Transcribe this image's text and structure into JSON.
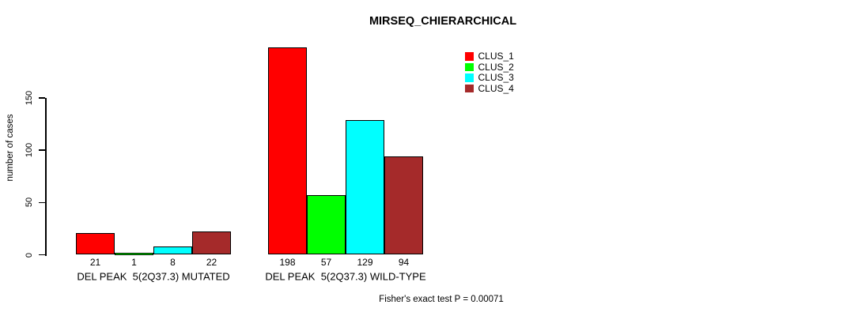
{
  "chart_data": {
    "type": "bar",
    "title": "MIRSEQ_CHIERARCHICAL",
    "ylabel": "number of cases",
    "xlabel": "",
    "categories": [
      "DEL PEAK  5(2Q37.3) MUTATED",
      "DEL PEAK  5(2Q37.3) WILD-TYPE"
    ],
    "series": [
      {
        "name": "CLUS_1",
        "color": "#ff0000",
        "values": [
          21,
          198
        ]
      },
      {
        "name": "CLUS_2",
        "color": "#00ff00",
        "values": [
          1,
          57
        ]
      },
      {
        "name": "CLUS_3",
        "color": "#00ffff",
        "values": [
          8,
          129
        ]
      },
      {
        "name": "CLUS_4",
        "color": "#a52a2a",
        "values": [
          22,
          94
        ]
      }
    ],
    "yticks": [
      0,
      50,
      100,
      150
    ],
    "ylim": [
      0,
      150
    ],
    "grid": false,
    "show_bar_value_labels": true,
    "legend_position": "top-right",
    "annotation": "Fisher's exact test P = 0.00071",
    "bar_border_color": "#000000",
    "text_color": "#000000",
    "background_color": "#ffffff"
  }
}
